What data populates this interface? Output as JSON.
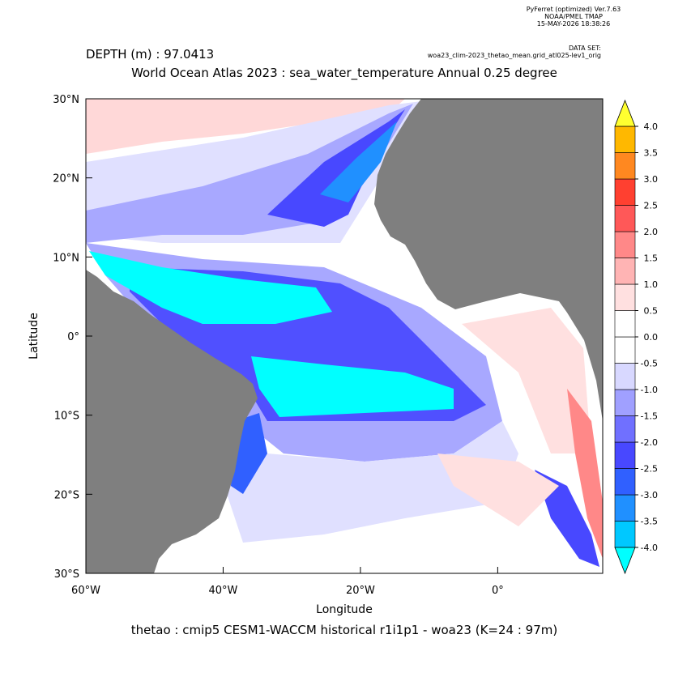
{
  "header": {
    "software": "PyFerret (optimized) Ver.7.63",
    "org": "NOAA/PMEL TMAP",
    "timestamp": "15-MAY-2026 18:38:26",
    "dataset_label": "DATA SET:",
    "dataset": "woa23_clim-2023_thetao_mean.grid_atl025-lev1_orig"
  },
  "chart_data": {
    "type": "map",
    "depth_label": "DEPTH (m) : 97.0413",
    "title": "World Ocean Atlas 2023 : sea_water_temperature Annual  0.25 degree",
    "x_label": "Longitude",
    "y_label": "Latitude",
    "caption": "thetao : cmip5 CESM1-WACCM historical r1i1p1 - woa23  (K=24 : 97m)",
    "xlim": [
      -60,
      15.3
    ],
    "xticks": [
      {
        "value": -60,
        "label": "60°W"
      },
      {
        "value": -40,
        "label": "40°W"
      },
      {
        "value": -20,
        "label": "20°W"
      },
      {
        "value": 0,
        "label": "0°"
      }
    ],
    "ylim": [
      -30,
      30
    ],
    "yticks": [
      {
        "value": 30,
        "label": "30°N"
      },
      {
        "value": 20,
        "label": "20°N"
      },
      {
        "value": 10,
        "label": "10°N"
      },
      {
        "value": 0,
        "label": "0°"
      },
      {
        "value": -10,
        "label": "10°S"
      },
      {
        "value": -20,
        "label": "20°S"
      },
      {
        "value": -30,
        "label": "30°S"
      }
    ],
    "colorbar": {
      "levels": [
        {
          "value": -4,
          "label": "-4.0"
        },
        -3.5,
        {
          "value": -3,
          "label": "-3.0"
        },
        -2.5,
        {
          "value": -2,
          "label": "-2.0"
        },
        -1.5,
        {
          "value": -1,
          "label": "-1.0"
        },
        -0.5,
        {
          "value": 0,
          "label": "0.0"
        },
        0.5,
        {
          "value": 1,
          "label": "1.0"
        },
        1.5,
        {
          "value": 2,
          "label": "2.0"
        },
        2.5,
        {
          "value": 3,
          "label": "3.0"
        },
        3.5,
        {
          "value": 4,
          "label": "4.0"
        }
      ],
      "colors": [
        "#00c8ff",
        "#2090ff",
        "#3060ff",
        "#4848ff",
        "#7070ff",
        "#a0a0ff",
        "#d8d8ff",
        "#ffffff",
        "#ffffff",
        "#ffe0e0",
        "#ffb4b4",
        "#ff8888",
        "#ff5858",
        "#ff4030",
        "#ff8820",
        "#ffb800"
      ],
      "under_color": "#00ffff",
      "over_color": "#ffff30"
    }
  }
}
